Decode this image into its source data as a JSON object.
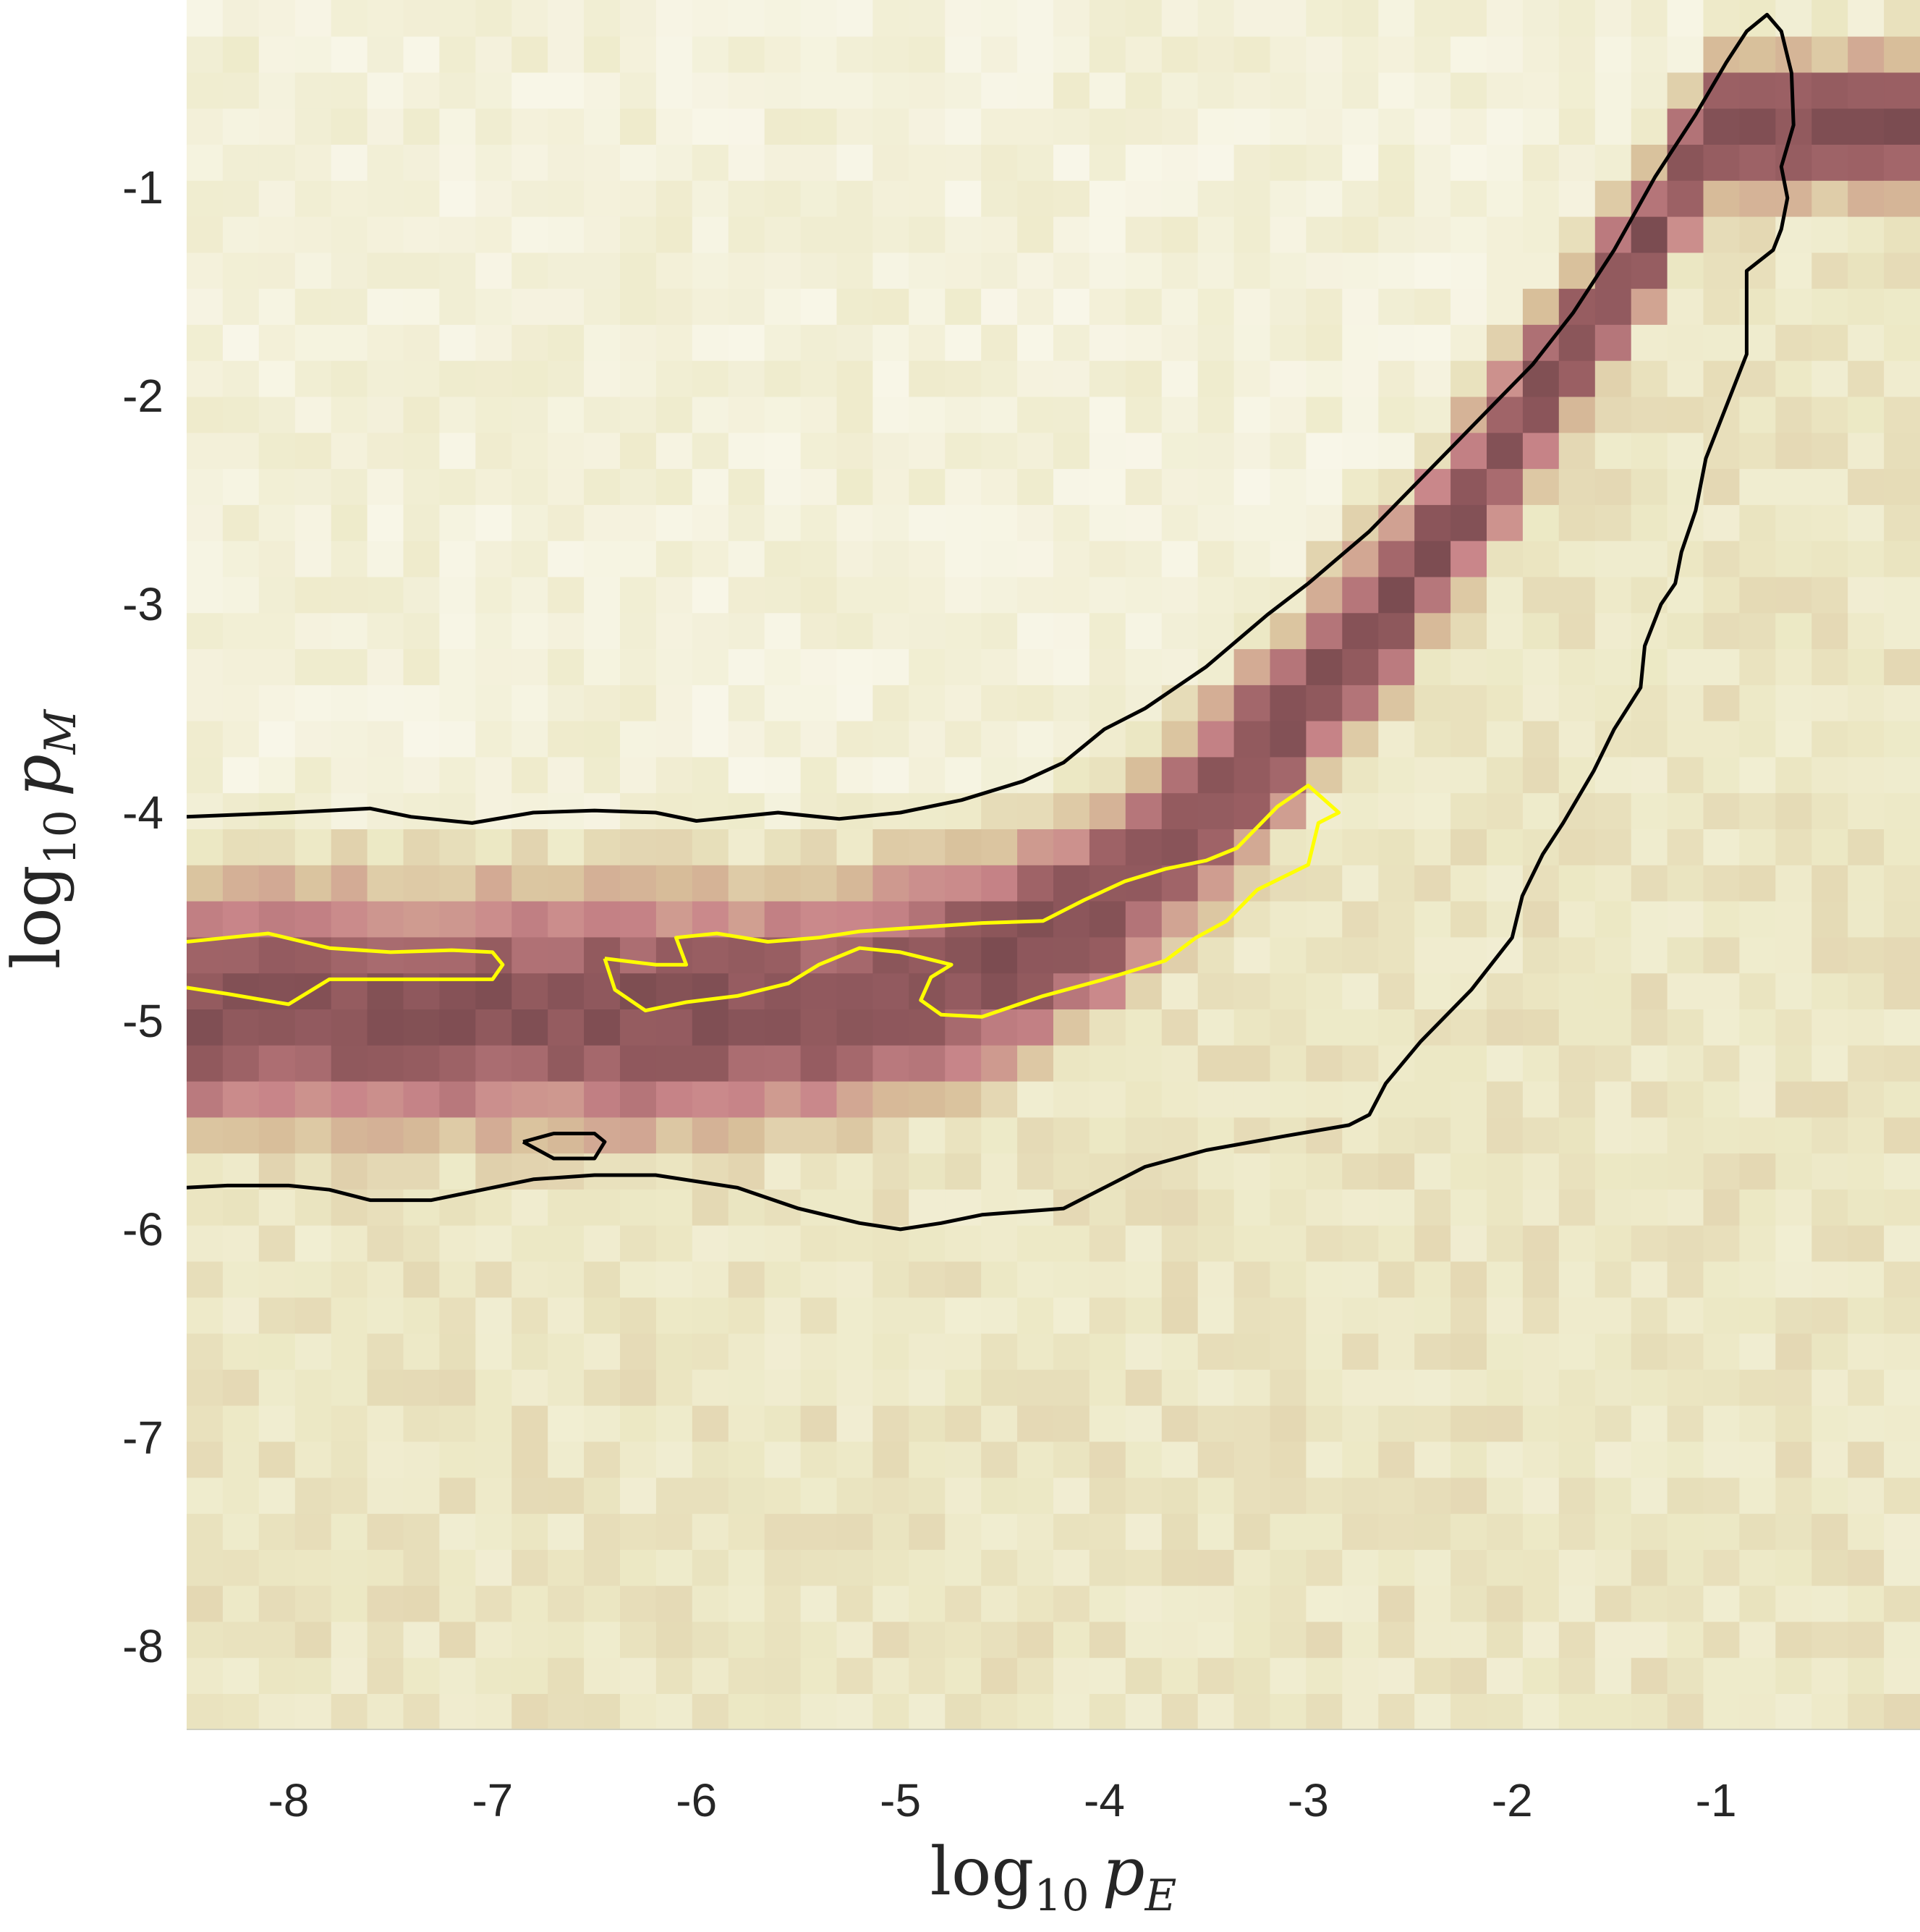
{
  "chart_data": {
    "type": "heatmap",
    "title": "",
    "xlabel": {
      "base": "log",
      "sub": "10",
      "var": "p",
      "var_sub": "E"
    },
    "ylabel": {
      "base": "log",
      "sub": "10",
      "var": "p",
      "var_sub": "M"
    },
    "xlim": [
      -8.5,
      0.0
    ],
    "ylim": [
      -8.4,
      -0.1
    ],
    "x_ticks": [
      -8,
      -7,
      -6,
      -5,
      -4,
      -3,
      -2,
      -1
    ],
    "y_ticks": [
      -1,
      -2,
      -3,
      -4,
      -5,
      -6,
      -7,
      -8
    ],
    "x_tick_labels": [
      "-8",
      "-7",
      "-6",
      "-5",
      "-4",
      "-3",
      "-2",
      "-1"
    ],
    "y_tick_labels": [
      "-1",
      "-2",
      "-3",
      "-4",
      "-5",
      "-6",
      "-7",
      "-8"
    ],
    "grid": false,
    "legend": "none",
    "bins": {
      "nx": 48,
      "ny": 48
    },
    "colormap": [
      "#f8f6e8",
      "#ece8c4",
      "#d8bf9a",
      "#c9868a",
      "#9a5f63",
      "#7a4b50"
    ],
    "density_ridge": {
      "description_points_x": [
        -8.5,
        -7.5,
        -6.5,
        -5.5,
        -5.0,
        -4.5,
        -4.0,
        -3.5,
        -3.0,
        -2.5,
        -2.0,
        -1.5,
        -1.0
      ],
      "center_y": [
        -4.95,
        -4.95,
        -4.95,
        -4.95,
        -4.85,
        -4.7,
        -4.45,
        -4.0,
        -3.45,
        -2.9,
        -2.2,
        -1.5,
        -0.7
      ],
      "half_width": [
        0.45,
        0.45,
        0.45,
        0.43,
        0.42,
        0.4,
        0.38,
        0.36,
        0.34,
        0.32,
        0.3,
        0.28,
        0.26
      ]
    },
    "contours": [
      {
        "color": "#000000",
        "points": [
          [
            -8.5,
            -4.02
          ],
          [
            -8.0,
            -4.0
          ],
          [
            -7.6,
            -3.98
          ],
          [
            -7.4,
            -4.02
          ],
          [
            -7.1,
            -4.05
          ],
          [
            -6.8,
            -4.0
          ],
          [
            -6.5,
            -3.99
          ],
          [
            -6.2,
            -4.0
          ],
          [
            -6.0,
            -4.04
          ],
          [
            -5.6,
            -4.0
          ],
          [
            -5.3,
            -4.03
          ],
          [
            -5.0,
            -4.0
          ],
          [
            -4.7,
            -3.94
          ],
          [
            -4.4,
            -3.85
          ],
          [
            -4.2,
            -3.76
          ],
          [
            -4.0,
            -3.6
          ],
          [
            -3.8,
            -3.5
          ],
          [
            -3.5,
            -3.3
          ],
          [
            -3.2,
            -3.05
          ],
          [
            -3.0,
            -2.9
          ],
          [
            -2.7,
            -2.65
          ],
          [
            -2.5,
            -2.45
          ],
          [
            -2.3,
            -2.25
          ],
          [
            -2.1,
            -2.05
          ],
          [
            -1.9,
            -1.85
          ],
          [
            -1.7,
            -1.6
          ],
          [
            -1.5,
            -1.3
          ],
          [
            -1.3,
            -0.95
          ],
          [
            -1.1,
            -0.65
          ],
          [
            -0.95,
            -0.4
          ],
          [
            -0.85,
            -0.25
          ],
          [
            -0.75,
            -0.17
          ],
          [
            -0.68,
            -0.25
          ],
          [
            -0.63,
            -0.45
          ],
          [
            -0.62,
            -0.7
          ],
          [
            -0.68,
            -0.9
          ],
          [
            -0.65,
            -1.05
          ],
          [
            -0.68,
            -1.2
          ],
          [
            -0.72,
            -1.3
          ],
          [
            -0.85,
            -1.4
          ],
          [
            -0.85,
            -1.8
          ],
          [
            -0.95,
            -2.05
          ],
          [
            -1.05,
            -2.3
          ],
          [
            -1.1,
            -2.55
          ],
          [
            -1.17,
            -2.75
          ],
          [
            -1.2,
            -2.9
          ],
          [
            -1.27,
            -3.0
          ],
          [
            -1.35,
            -3.2
          ],
          [
            -1.37,
            -3.4
          ],
          [
            -1.5,
            -3.6
          ],
          [
            -1.6,
            -3.8
          ],
          [
            -1.75,
            -4.05
          ],
          [
            -1.85,
            -4.2
          ],
          [
            -1.95,
            -4.4
          ],
          [
            -2.0,
            -4.6
          ],
          [
            -2.2,
            -4.85
          ],
          [
            -2.45,
            -5.1
          ],
          [
            -2.62,
            -5.3
          ],
          [
            -2.7,
            -5.45
          ],
          [
            -2.8,
            -5.5
          ],
          [
            -3.1,
            -5.55
          ],
          [
            -3.5,
            -5.62
          ],
          [
            -3.8,
            -5.7
          ],
          [
            -4.0,
            -5.8
          ],
          [
            -4.2,
            -5.9
          ],
          [
            -4.6,
            -5.93
          ],
          [
            -4.8,
            -5.97
          ],
          [
            -5.0,
            -6.0
          ],
          [
            -5.2,
            -5.97
          ],
          [
            -5.5,
            -5.9
          ],
          [
            -5.8,
            -5.8
          ],
          [
            -6.2,
            -5.74
          ],
          [
            -6.5,
            -5.74
          ],
          [
            -6.8,
            -5.76
          ],
          [
            -7.0,
            -5.8
          ],
          [
            -7.3,
            -5.86
          ],
          [
            -7.6,
            -5.86
          ],
          [
            -7.8,
            -5.81
          ],
          [
            -8.0,
            -5.79
          ],
          [
            -8.3,
            -5.79
          ],
          [
            -8.5,
            -5.8
          ]
        ]
      },
      {
        "color": "#000000",
        "points": [
          [
            -6.85,
            -5.58
          ],
          [
            -6.7,
            -5.54
          ],
          [
            -6.5,
            -5.54
          ],
          [
            -6.45,
            -5.58
          ],
          [
            -6.5,
            -5.66
          ],
          [
            -6.7,
            -5.66
          ],
          [
            -6.85,
            -5.58
          ]
        ]
      },
      {
        "color": "#ffff00",
        "points": [
          [
            -8.5,
            -4.62
          ],
          [
            -8.3,
            -4.6
          ],
          [
            -8.1,
            -4.58
          ],
          [
            -7.8,
            -4.65
          ],
          [
            -7.5,
            -4.67
          ],
          [
            -7.2,
            -4.66
          ],
          [
            -7.0,
            -4.67
          ],
          [
            -6.95,
            -4.73
          ],
          [
            -7.0,
            -4.8
          ],
          [
            -7.2,
            -4.8
          ],
          [
            -7.5,
            -4.8
          ],
          [
            -7.8,
            -4.8
          ],
          [
            -8.0,
            -4.92
          ],
          [
            -8.3,
            -4.87
          ],
          [
            -8.5,
            -4.84
          ]
        ]
      },
      {
        "color": "#ffff00",
        "points": [
          [
            -6.45,
            -4.7
          ],
          [
            -6.2,
            -4.73
          ],
          [
            -6.05,
            -4.73
          ],
          [
            -6.1,
            -4.6
          ],
          [
            -5.9,
            -4.58
          ],
          [
            -5.65,
            -4.62
          ],
          [
            -5.4,
            -4.6
          ],
          [
            -5.2,
            -4.57
          ],
          [
            -4.9,
            -4.55
          ],
          [
            -4.6,
            -4.53
          ],
          [
            -4.3,
            -4.52
          ],
          [
            -4.1,
            -4.42
          ],
          [
            -3.9,
            -4.33
          ],
          [
            -3.7,
            -4.27
          ],
          [
            -3.5,
            -4.23
          ],
          [
            -3.35,
            -4.17
          ],
          [
            -3.15,
            -3.97
          ],
          [
            -3.0,
            -3.87
          ],
          [
            -2.85,
            -4.0
          ],
          [
            -2.95,
            -4.05
          ],
          [
            -3.0,
            -4.25
          ],
          [
            -3.25,
            -4.37
          ],
          [
            -3.4,
            -4.52
          ],
          [
            -3.55,
            -4.6
          ],
          [
            -3.7,
            -4.71
          ],
          [
            -4.0,
            -4.8
          ],
          [
            -4.3,
            -4.88
          ],
          [
            -4.6,
            -4.98
          ],
          [
            -4.8,
            -4.97
          ],
          [
            -4.9,
            -4.9
          ],
          [
            -4.85,
            -4.79
          ],
          [
            -4.75,
            -4.73
          ],
          [
            -5.0,
            -4.67
          ],
          [
            -5.2,
            -4.65
          ],
          [
            -5.4,
            -4.73
          ],
          [
            -5.55,
            -4.82
          ],
          [
            -5.8,
            -4.88
          ],
          [
            -6.05,
            -4.91
          ],
          [
            -6.25,
            -4.95
          ],
          [
            -6.4,
            -4.85
          ],
          [
            -6.45,
            -4.7
          ]
        ]
      }
    ]
  }
}
